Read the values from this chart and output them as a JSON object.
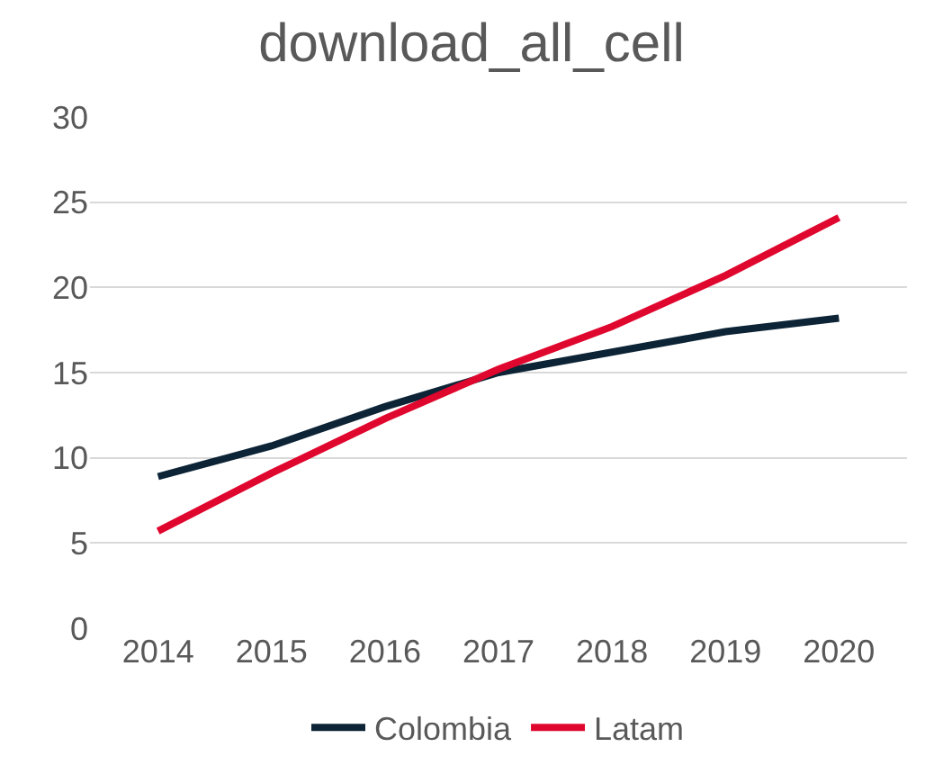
{
  "chart_data": {
    "type": "line",
    "title": "download_all_cell",
    "categories": [
      "2014",
      "2015",
      "2016",
      "2017",
      "2018",
      "2019",
      "2020"
    ],
    "series": [
      {
        "name": "Colombia",
        "color": "#0d2436",
        "values": [
          8.9,
          10.7,
          13.0,
          15.0,
          16.2,
          17.4,
          18.2
        ]
      },
      {
        "name": "Latam",
        "color": "#e0072f",
        "values": [
          5.7,
          9.1,
          12.3,
          15.2,
          17.7,
          20.7,
          24.1
        ]
      }
    ],
    "ylim": [
      0,
      30
    ],
    "yticks": [
      0,
      5,
      10,
      15,
      20,
      25,
      30
    ],
    "grid": "y",
    "legend": "bottom",
    "marker": "none",
    "line_style": "solid"
  }
}
